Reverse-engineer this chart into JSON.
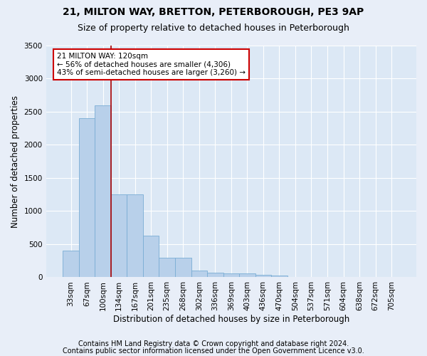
{
  "title1": "21, MILTON WAY, BRETTON, PETERBOROUGH, PE3 9AP",
  "title2": "Size of property relative to detached houses in Peterborough",
  "xlabel": "Distribution of detached houses by size in Peterborough",
  "ylabel": "Number of detached properties",
  "footnote1": "Contains HM Land Registry data © Crown copyright and database right 2024.",
  "footnote2": "Contains public sector information licensed under the Open Government Licence v3.0.",
  "categories": [
    "33sqm",
    "67sqm",
    "100sqm",
    "134sqm",
    "167sqm",
    "201sqm",
    "235sqm",
    "268sqm",
    "302sqm",
    "336sqm",
    "369sqm",
    "403sqm",
    "436sqm",
    "470sqm",
    "504sqm",
    "537sqm",
    "571sqm",
    "604sqm",
    "638sqm",
    "672sqm",
    "705sqm"
  ],
  "values": [
    400,
    2400,
    2600,
    1250,
    1250,
    630,
    290,
    290,
    105,
    65,
    55,
    55,
    40,
    30,
    0,
    0,
    0,
    0,
    0,
    0,
    0
  ],
  "bar_color": "#b8d0ea",
  "bar_edge_color": "#7aadd4",
  "annotation_text": "21 MILTON WAY: 120sqm\n← 56% of detached houses are smaller (4,306)\n43% of semi-detached houses are larger (3,260) →",
  "annotation_box_color": "#ffffff",
  "annotation_box_edge_color": "#cc0000",
  "vline_color": "#aa0000",
  "vline_x": 2.5,
  "ylim": [
    0,
    3500
  ],
  "yticks": [
    0,
    500,
    1000,
    1500,
    2000,
    2500,
    3000,
    3500
  ],
  "bg_color": "#dce8f5",
  "grid_color": "#ffffff",
  "fig_bg_color": "#e8eef8",
  "title1_fontsize": 10,
  "title2_fontsize": 9,
  "axis_label_fontsize": 8.5,
  "tick_fontsize": 7.5,
  "footnote_fontsize": 7,
  "annot_fontsize": 7.5
}
